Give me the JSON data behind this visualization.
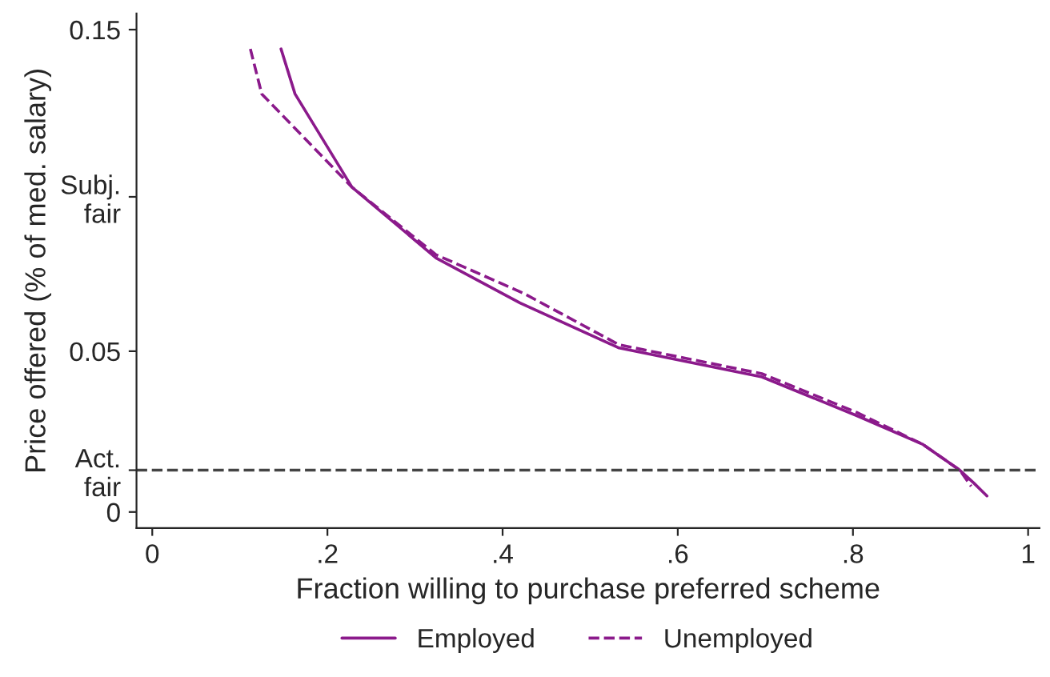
{
  "chart_data": {
    "type": "line",
    "xlabel": "Fraction willing to purchase preferred scheme",
    "ylabel": "Price offered (% of med. salary)",
    "xlim": [
      -0.018,
      1.013
    ],
    "ylim": [
      -0.005,
      0.155
    ],
    "xticks": [
      0,
      {
        "value": 0.2,
        "label": ".2"
      },
      {
        "value": 0.4,
        "label": ".4"
      },
      {
        "value": 0.6,
        "label": ".6"
      },
      {
        "value": 0.8,
        "label": ".8"
      },
      1
    ],
    "yticks": [
      0,
      {
        "value": 0.013,
        "label": "Act.\nfair"
      },
      0.05,
      {
        "value": 0.098,
        "label": "Subj.\nfair"
      },
      0.15
    ],
    "grid": false,
    "legend": "bottom",
    "marker": "none",
    "ref_lines": [
      {
        "axis": "y",
        "value": 0.013,
        "color": "#444444",
        "line_style": "dashed"
      }
    ],
    "series": [
      {
        "name": "Employed",
        "color": "#8b1a8b",
        "line_style": "solid",
        "x": [
          0.147,
          0.163,
          0.228,
          0.324,
          0.42,
          0.533,
          0.696,
          0.804,
          0.88,
          0.922,
          0.938,
          0.953
        ],
        "values": [
          0.144,
          0.13,
          0.101,
          0.079,
          0.065,
          0.051,
          0.042,
          0.03,
          0.021,
          0.013,
          0.009,
          0.005
        ]
      },
      {
        "name": "Unemployed",
        "color": "#8b1a8b",
        "line_style": "dashed",
        "x": [
          0.112,
          0.125,
          0.228,
          0.324,
          0.424,
          0.533,
          0.696,
          0.804,
          0.88,
          0.922,
          0.935
        ],
        "values": [
          0.144,
          0.13,
          0.101,
          0.08,
          0.068,
          0.052,
          0.043,
          0.031,
          0.021,
          0.013,
          0.008
        ]
      }
    ]
  }
}
